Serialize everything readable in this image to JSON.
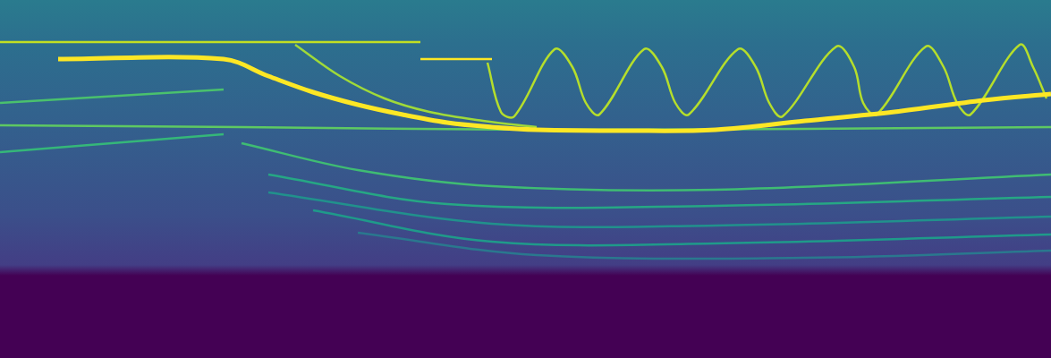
{
  "chart_data": {
    "type": "line",
    "tick_labels": false,
    "grid": false,
    "xlim": [
      0,
      1175
    ],
    "ylim": [
      0,
      400
    ],
    "series": [
      {
        "color": "#fde725",
        "x": [
          65,
          250,
          300,
          350,
          400,
          450,
          500,
          550,
          600,
          700,
          800,
          900,
          1000,
          1100,
          1175
        ],
        "values": [
          334,
          334,
          315,
          297,
          283,
          272,
          263,
          258,
          255,
          254,
          255,
          265,
          275,
          288,
          295
        ]
      },
      {
        "color": "#c2df23",
        "x": [
          0,
          470
        ],
        "values": [
          353,
          353
        ]
      },
      {
        "color": "#fde725",
        "x": [
          470,
          550
        ],
        "values": [
          334,
          334
        ]
      },
      {
        "color": "#a0da39",
        "x": [
          330,
          380,
          430,
          480,
          540,
          600
        ],
        "values": [
          350,
          315,
          290,
          275,
          265,
          258
        ]
      },
      {
        "color": "#b5de2b",
        "x": [
          545,
          560,
          575,
          620,
          640,
          655,
          670,
          720,
          740,
          755,
          770,
          825,
          845,
          860,
          875,
          935,
          955,
          965,
          980,
          1035,
          1055,
          1070,
          1085,
          1140,
          1155,
          1170
        ],
        "values": [
          330,
          275,
          270,
          345,
          325,
          285,
          272,
          345,
          325,
          285,
          272,
          345,
          325,
          285,
          270,
          348,
          325,
          285,
          272,
          348,
          325,
          285,
          272,
          350,
          325,
          290
        ]
      },
      {
        "color": "#4ac16d",
        "x": [
          0,
          250
        ],
        "values": [
          285,
          300
        ]
      },
      {
        "color": "#5ec962",
        "x": [
          0,
          270,
          600,
          900,
          1175
        ],
        "values": [
          260,
          258,
          255,
          256,
          258
        ]
      },
      {
        "color": "#35b779",
        "x": [
          0,
          250
        ],
        "values": [
          230,
          250
        ]
      },
      {
        "color": "#3fbc73",
        "x": [
          270,
          400,
          550,
          800,
          1175
        ],
        "values": [
          240,
          210,
          192,
          188,
          205
        ]
      },
      {
        "color": "#26a784",
        "x": [
          300,
          500,
          800,
          1175
        ],
        "values": [
          205,
          172,
          170,
          180
        ]
      },
      {
        "color": "#21918c",
        "x": [
          300,
          550,
          800,
          1175
        ],
        "values": [
          185,
          150,
          148,
          158
        ]
      },
      {
        "color": "#1f9a8a",
        "x": [
          350,
          550,
          800,
          1175
        ],
        "values": [
          165,
          130,
          128,
          138
        ]
      },
      {
        "color": "#2a788e",
        "x": [
          400,
          600,
          900,
          1175
        ],
        "values": [
          140,
          115,
          112,
          120
        ]
      }
    ]
  }
}
